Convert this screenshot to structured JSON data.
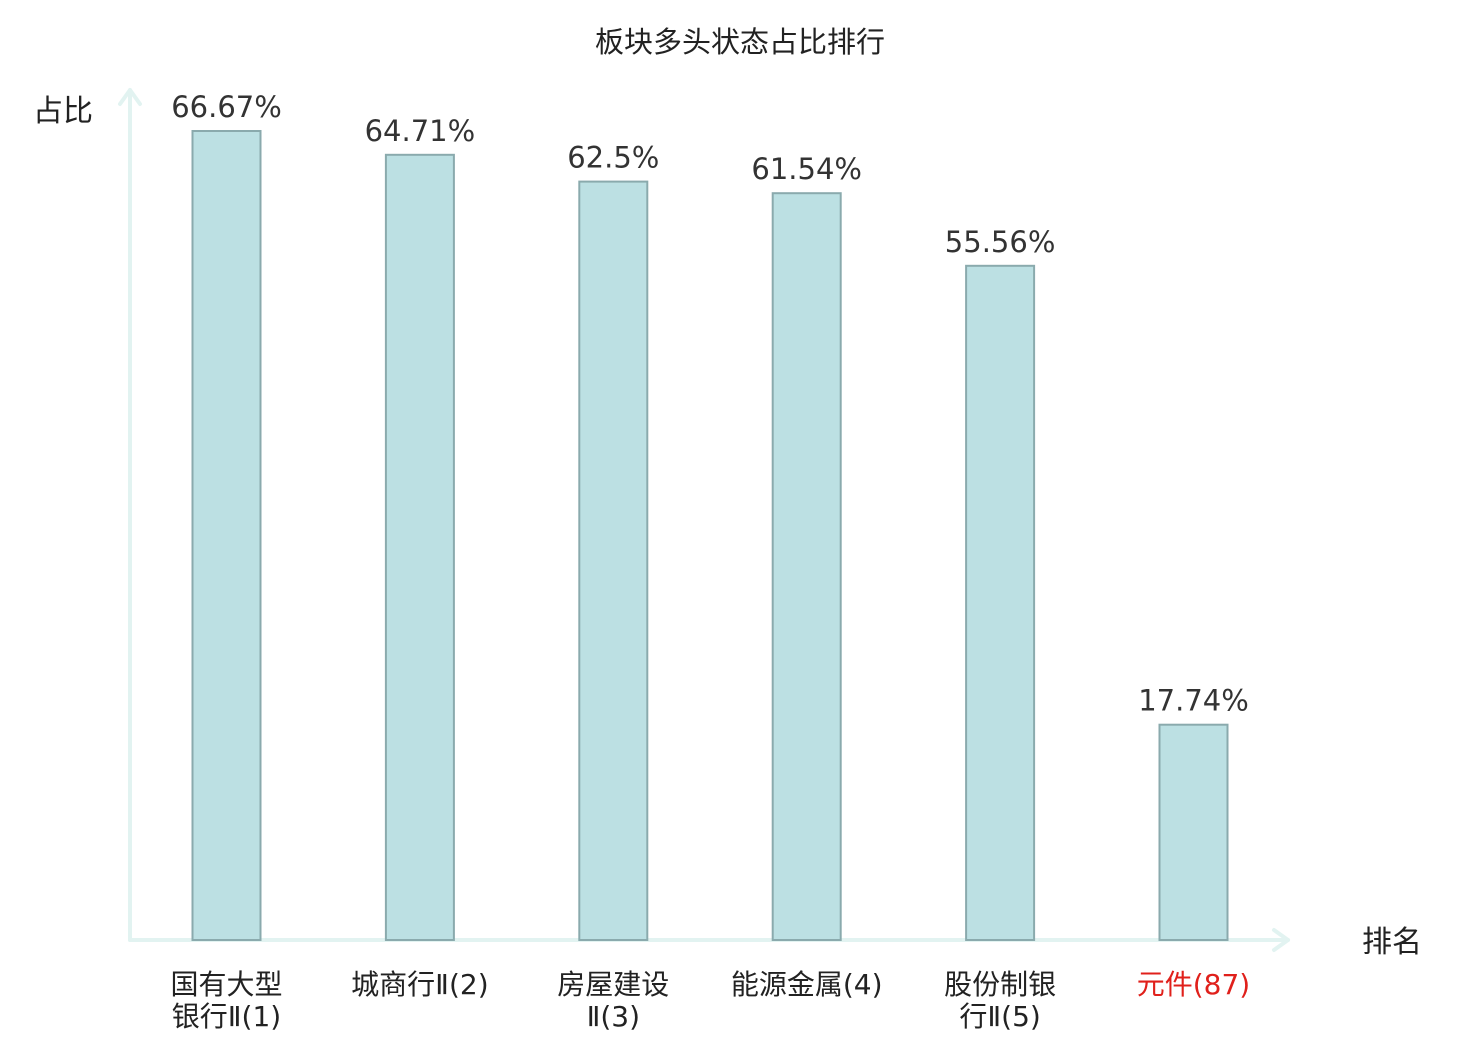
{
  "chart_data": {
    "type": "bar",
    "title": "板块多头状态占比排行",
    "ylabel": "占比",
    "xlabel": "排名",
    "ylim": [
      0,
      70
    ],
    "grid": false,
    "categories": [
      [
        "国有大型",
        "银行Ⅱ(1)"
      ],
      [
        "城商行Ⅱ(2)"
      ],
      [
        "房屋建设",
        "Ⅱ(3)"
      ],
      [
        "能源金属(4)"
      ],
      [
        "股份制银",
        "行Ⅱ(5)"
      ],
      [
        "元件(87)"
      ]
    ],
    "values": [
      66.67,
      64.71,
      62.5,
      61.54,
      55.56,
      17.74
    ],
    "value_labels": [
      "66.67%",
      "64.71%",
      "62.5%",
      "61.54%",
      "55.56%",
      "17.74%"
    ],
    "highlight_index": 5,
    "colors": {
      "bar_fill": "#bce0e3",
      "bar_stroke": "#8aaaad",
      "axis": "#e2f3f1",
      "label_text": "#333333",
      "category_text": "#222222",
      "highlight_text": "#e0201b"
    }
  }
}
